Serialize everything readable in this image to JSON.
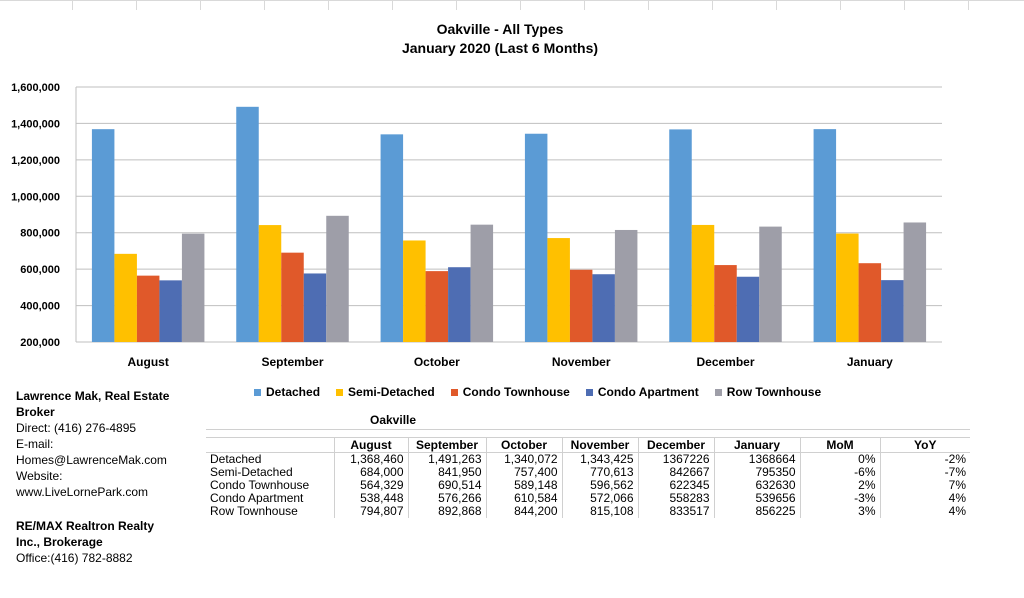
{
  "chart_data": {
    "type": "bar",
    "title": "Oakville - All Types",
    "subtitle": "January 2020 (Last 6 Months)",
    "categories": [
      "August",
      "September",
      "October",
      "November",
      "December",
      "January"
    ],
    "ylim": [
      200000,
      1600000
    ],
    "yticks": [
      "1,600,000",
      "1,400,000",
      "1,200,000",
      "1,000,000",
      "800,000",
      "600,000",
      "400,000",
      "200,000"
    ],
    "ytick_values": [
      1600000,
      1400000,
      1200000,
      1000000,
      800000,
      600000,
      400000,
      200000
    ],
    "grid": true,
    "legend_position": "bottom",
    "series": [
      {
        "name": "Detached",
        "color": "#5b9bd5",
        "values": [
          1368460,
          1491263,
          1340072,
          1343425,
          1367226,
          1368664
        ]
      },
      {
        "name": "Semi-Detached",
        "color": "#ffc000",
        "values": [
          684000,
          841950,
          757400,
          770613,
          842667,
          795350
        ]
      },
      {
        "name": "Condo Townhouse",
        "color": "#e0592a",
        "values": [
          564329,
          690514,
          589148,
          596562,
          622345,
          632630
        ]
      },
      {
        "name": "Condo Apartment",
        "color": "#4e6db3",
        "values": [
          538448,
          576266,
          610584,
          572066,
          558283,
          539656
        ]
      },
      {
        "name": "Row Townhouse",
        "color": "#9e9ea8",
        "values": [
          794807,
          892868,
          844200,
          815108,
          833517,
          856225
        ]
      }
    ]
  },
  "contact": {
    "name_line1": "Lawrence Mak, Real Estate",
    "name_line2": "Broker",
    "direct": "Direct:  (416)  276-4895",
    "email_label": "E-mail:",
    "email": "Homes@LawrenceMak.com",
    "website_label": "Website:",
    "website": "www.LiveLornePark.com",
    "brokerage_line1": "RE/MAX Realtron Realty",
    "brokerage_line2": "Inc., Brokerage",
    "office": "Office:(416)  782-8882"
  },
  "table": {
    "title": "Oakville",
    "headers": [
      "",
      "August",
      "September",
      "October",
      "November",
      "December",
      "January",
      "MoM",
      "YoY"
    ],
    "rows": [
      [
        "Detached",
        "1,368,460",
        "1,491,263",
        "1,340,072",
        "1,343,425",
        "1367226",
        "1368664",
        "0%",
        "-2%"
      ],
      [
        "Semi-Detached",
        "684,000",
        "841,950",
        "757,400",
        "770,613",
        "842667",
        "795350",
        "-6%",
        "-7%"
      ],
      [
        "Condo Townhouse",
        "564,329",
        "690,514",
        "589,148",
        "596,562",
        "622345",
        "632630",
        "2%",
        "7%"
      ],
      [
        "Condo Apartment",
        "538,448",
        "576,266",
        "610,584",
        "572,066",
        "558283",
        "539656",
        "-3%",
        "4%"
      ],
      [
        "Row Townhouse",
        "794,807",
        "892,868",
        "844,200",
        "815,108",
        "833517",
        "856225",
        "3%",
        "4%"
      ]
    ]
  }
}
